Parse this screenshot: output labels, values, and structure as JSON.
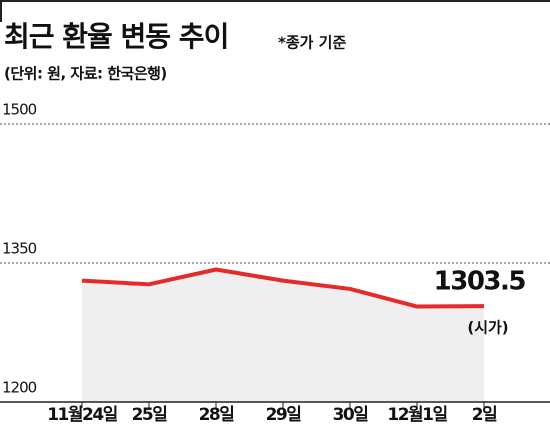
{
  "chart_data": {
    "type": "line",
    "title": "최근 환율 변동 추이",
    "subtitle": "*종가 기준",
    "source": "(단위: 원, 자료: 한국은행)",
    "annotation": "(시가)",
    "categories": [
      "11월24일",
      "25일",
      "28일",
      "29일",
      "30일",
      "12월1일",
      "2일"
    ],
    "series": [
      {
        "name": "환율",
        "color": "#e62a2a",
        "values": [
          1331,
          1327,
          1343,
          1331,
          1322,
          1303,
          1303.5
        ]
      }
    ],
    "ylim": [
      1200,
      1500
    ],
    "yticks": [
      1200,
      1350,
      1500
    ],
    "grid": true
  }
}
